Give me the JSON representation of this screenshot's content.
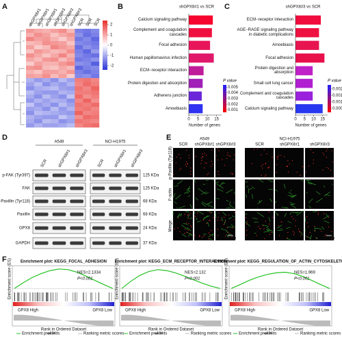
{
  "panel_labels": [
    "A",
    "B",
    "C",
    "D",
    "E",
    "F"
  ],
  "heatmap": {
    "columns": [
      "shGPX8#1",
      "shGPX8#1",
      "shGPX8#1",
      "shGPX8#3",
      "shGPX8#3",
      "shGPX8#3",
      "SCR",
      "SCR",
      "SCR"
    ],
    "colorbar_lim": [
      -2.4,
      2.4
    ],
    "colorbar_ticks": [
      2,
      1,
      0,
      -1,
      -2
    ],
    "colors": [
      "#2b35d8",
      "#ffffff",
      "#e8302c"
    ],
    "rows": [
      [
        1.2,
        1.0,
        0.9,
        1.1,
        1.3,
        0.8,
        -1.5,
        -1.6,
        -1.4
      ],
      [
        0.9,
        1.3,
        1.1,
        0.7,
        1.0,
        1.2,
        -1.3,
        -1.7,
        -1.5
      ],
      [
        1.4,
        1.1,
        1.2,
        0.9,
        0.6,
        1.0,
        -1.6,
        -1.4,
        -1.8
      ],
      [
        0.8,
        0.9,
        1.3,
        1.2,
        1.1,
        0.7,
        -1.4,
        -1.5,
        -1.6
      ],
      [
        1.1,
        0.6,
        0.8,
        1.4,
        1.2,
        1.0,
        -1.7,
        -1.3,
        -1.5
      ],
      [
        0.7,
        1.2,
        1.0,
        0.8,
        0.9,
        1.3,
        -1.5,
        -1.8,
        -1.2
      ],
      [
        1.3,
        1.0,
        0.7,
        1.0,
        1.4,
        0.9,
        -1.4,
        -1.6,
        -1.7
      ],
      [
        1.0,
        0.8,
        1.2,
        1.3,
        0.8,
        1.1,
        -1.6,
        -1.5,
        -1.3
      ],
      [
        0.6,
        1.1,
        0.9,
        0.9,
        1.2,
        1.4,
        -1.3,
        -1.4,
        -1.9
      ],
      [
        1.2,
        1.3,
        0.8,
        0.7,
        1.0,
        0.8,
        -1.8,
        -1.5,
        -1.4
      ],
      [
        0.9,
        0.7,
        1.1,
        1.1,
        0.9,
        1.2,
        -1.5,
        -1.7,
        -1.5
      ],
      [
        1.1,
        1.0,
        1.3,
        0.8,
        1.1,
        0.6,
        -1.4,
        -1.3,
        -1.6
      ],
      [
        -0.9,
        -1.2,
        -1.0,
        -1.3,
        -0.8,
        -1.1,
        1.5,
        1.6,
        1.4
      ],
      [
        -1.1,
        -0.8,
        -1.3,
        -1.0,
        -1.2,
        -0.9,
        1.4,
        1.7,
        1.5
      ],
      [
        -1.3,
        -1.0,
        -0.9,
        -0.8,
        -1.1,
        -1.2,
        1.6,
        1.4,
        1.8
      ],
      [
        -0.8,
        -1.1,
        -1.2,
        -1.2,
        -0.9,
        -1.0,
        1.5,
        1.5,
        1.6
      ],
      [
        -1.0,
        -1.3,
        -0.8,
        -1.1,
        -1.3,
        -0.7,
        1.7,
        1.3,
        1.5
      ],
      [
        -1.2,
        -0.9,
        -1.1,
        -0.9,
        -1.0,
        -1.3,
        1.4,
        1.8,
        1.3
      ],
      [
        -0.7,
        -1.2,
        -1.0,
        -1.3,
        -0.8,
        -1.1,
        1.6,
        1.5,
        1.7
      ],
      [
        -1.1,
        -1.0,
        -1.3,
        -0.8,
        -1.2,
        -0.9,
        1.5,
        1.6,
        1.4
      ],
      [
        -1.3,
        -0.8,
        -0.9,
        -1.0,
        -1.1,
        -1.2,
        1.8,
        1.4,
        1.5
      ],
      [
        -0.9,
        -1.1,
        -1.2,
        -1.2,
        -0.7,
        -1.0,
        1.3,
        1.7,
        1.6
      ],
      [
        -1.0,
        -1.3,
        -0.8,
        -0.9,
        -1.3,
        -1.1,
        1.6,
        1.5,
        1.4
      ],
      [
        -1.2,
        -0.9,
        -1.1,
        -1.1,
        -1.0,
        -0.8,
        1.4,
        1.6,
        1.7
      ]
    ]
  },
  "chart_data": [
    {
      "type": "bar",
      "title": "shGPX8#1 vs SCR",
      "categories": [
        "Calcium signaling pathway",
        "Complement and coagulation cascades",
        "Focal adhesion",
        "Human papillomavirus infection",
        "ECM−receptor interaction",
        "Protein digestion and absorption",
        "Adherens junction",
        "Amoebiasis"
      ],
      "values": [
        13,
        12.5,
        11.5,
        13.5,
        8,
        7.5,
        7,
        7.5
      ],
      "colors": [
        "#f6062e",
        "#f01040",
        "#e8155a",
        "#e0186a",
        "#c01c9a",
        "#a020b8",
        "#6a26d8",
        "#2f32f0"
      ],
      "xlabel": "Number of genes",
      "xlim": [
        0,
        17
      ],
      "xticks": [
        0,
        5,
        10,
        15
      ],
      "legend_title": "P value",
      "legend_lim": [
        0.0006,
        0.0054
      ],
      "legend_ticks": [
        0.005,
        0.004,
        0.003,
        0.002,
        0.001
      ],
      "legend_colors": [
        "#2020ff",
        "#ff0000"
      ]
    },
    {
      "type": "bar",
      "title": "shGPX8#3 vs SCR",
      "categories": [
        "ECM−receptor interaction",
        "AGE−RAGE signaling pathway in diabetic complications",
        "Amoebiasis",
        "Focal adhesion",
        "Protein digestion and absorption",
        "Small cell lung cancer",
        "Complement and coagulation cascades",
        "Calcium signaling pathway"
      ],
      "values": [
        14,
        13,
        13,
        16,
        9.5,
        9.5,
        9.5,
        15
      ],
      "colors": [
        "#f00c3c",
        "#ee1040",
        "#e81450",
        "#e8104a",
        "#c020c8",
        "#b020d0",
        "#9a22dc",
        "#2838f0"
      ],
      "xlabel": "Number of genes",
      "xlim": [
        0,
        17
      ],
      "xticks": [
        0,
        5,
        10,
        15
      ],
      "legend_title": "P value",
      "legend_lim": [
        0.0002,
        0.0023
      ],
      "legend_ticks": [
        0.002,
        0.0015,
        0.001,
        0.0005
      ],
      "legend_colors": [
        "#2020ff",
        "#ff0000"
      ]
    }
  ],
  "western_blot": {
    "cell_lines": [
      "A549",
      "NCI-H1975"
    ],
    "lanes": [
      "SCR",
      "shGPX8#1",
      "shGPX8#3"
    ],
    "proteins": [
      "p-FAK (Tyr397)",
      "FAK",
      "p-Paxillin (Tyr118)",
      "Paxillin",
      "GPX8",
      "GAPDH"
    ],
    "sizes": [
      "125 KDa",
      "125 KDa",
      "68 KDa",
      "68 KDa",
      "24 KDa",
      "37 KDa"
    ]
  },
  "microscopy": {
    "cell_lines": [
      "A549",
      "NCI-H1975"
    ],
    "lanes": [
      "SCR",
      "shGPX8#1",
      "shGPX8#3"
    ],
    "channels": [
      "p-Paxillin (Tyr118)",
      "F-actin",
      "Merge"
    ],
    "scale_bar": "10 μm"
  },
  "gsea": {
    "plots": [
      {
        "title": "Enrichment plot: KEGG_FOCAL_ADHESION",
        "nes": "NES=2.1334",
        "p": "P<0.001",
        "es": [
          0,
          0.18,
          0.34,
          0.46,
          0.55,
          0.6,
          0.58,
          0.5,
          0.38,
          0.25,
          0.12,
          0
        ]
      },
      {
        "title": "Enrichment plot: KEGG_ECM_RECEPTOR_INTERACTION",
        "nes": "NES=2.132",
        "p": "P<0.001",
        "es": [
          0,
          0.22,
          0.4,
          0.52,
          0.58,
          0.55,
          0.48,
          0.38,
          0.27,
          0.16,
          0.07,
          0
        ]
      },
      {
        "title": "Enrichment plot: KEGG_REGULATION_OF_ACTIN_CYTOSKELETON",
        "nes": "NES=1.969",
        "p": "P<0.001",
        "es": [
          0,
          0.12,
          0.25,
          0.35,
          0.43,
          0.48,
          0.5,
          0.46,
          0.37,
          0.25,
          0.12,
          0
        ]
      }
    ],
    "es_lim": [
      -0.1,
      0.7
    ],
    "high_label": "GPX8 High",
    "low_label": "GPX8 Low",
    "ylabel": "Enrichment score (ES)",
    "xlabel": "Rank in Ordered Dataset",
    "legend": [
      "Enrichment profile",
      "Hits",
      "Ranking metric scores"
    ]
  }
}
